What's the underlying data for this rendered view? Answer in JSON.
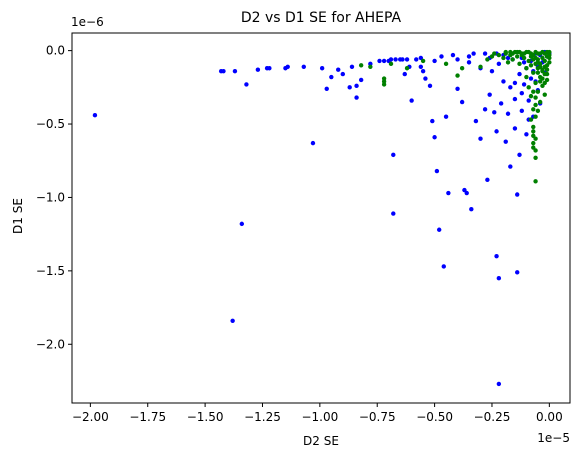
{
  "chart_data": {
    "type": "scatter",
    "title": "D2 vs D1 SE for AHEPA",
    "xlabel": "D2 SE",
    "ylabel": "D1 SE",
    "x_offset_label": "1e−5",
    "y_offset_label": "1e−6",
    "xlim": [
      -2.08,
      0.09
    ],
    "ylim": [
      -2.4,
      0.12
    ],
    "x_ticks": [
      -2.0,
      -1.75,
      -1.5,
      -1.25,
      -1.0,
      -0.75,
      -0.5,
      -0.25,
      0.0
    ],
    "x_tick_labels": [
      "−2.00",
      "−1.75",
      "−1.50",
      "−1.25",
      "−1.00",
      "−0.75",
      "−0.50",
      "−0.25",
      "0.00"
    ],
    "y_ticks": [
      -2.0,
      -1.5,
      -1.0,
      -0.5,
      0.0
    ],
    "y_tick_labels": [
      "−2.0",
      "−1.5",
      "−1.0",
      "−0.5",
      "0.0"
    ],
    "grid": false,
    "legend": "none",
    "series": [
      {
        "color": "#0000ff",
        "points": [
          [
            -1.98,
            -0.44
          ],
          [
            -1.43,
            -0.14
          ],
          [
            -1.42,
            -0.14
          ],
          [
            -1.37,
            -0.14
          ],
          [
            -1.34,
            -1.18
          ],
          [
            -1.32,
            -0.23
          ],
          [
            -1.38,
            -1.84
          ],
          [
            -1.27,
            -0.13
          ],
          [
            -1.23,
            -0.12
          ],
          [
            -1.22,
            -0.12
          ],
          [
            -1.15,
            -0.12
          ],
          [
            -1.14,
            -0.11
          ],
          [
            -1.07,
            -0.11
          ],
          [
            -1.03,
            -0.63
          ],
          [
            -0.99,
            -0.12
          ],
          [
            -0.97,
            -0.26
          ],
          [
            -0.95,
            -0.18
          ],
          [
            -0.92,
            -0.13
          ],
          [
            -0.9,
            -0.16
          ],
          [
            -0.87,
            -0.25
          ],
          [
            -0.86,
            -0.11
          ],
          [
            -0.84,
            -0.24
          ],
          [
            -0.84,
            -0.32
          ],
          [
            -0.82,
            -0.2
          ],
          [
            -0.78,
            -0.09
          ],
          [
            -0.74,
            -0.07
          ],
          [
            -0.72,
            -0.07
          ],
          [
            -0.7,
            -0.07
          ],
          [
            -0.69,
            -0.06
          ],
          [
            -0.67,
            -0.06
          ],
          [
            -0.65,
            -0.06
          ],
          [
            -0.64,
            -0.06
          ],
          [
            -0.62,
            -0.06
          ],
          [
            -0.68,
            -1.11
          ],
          [
            -0.68,
            -0.71
          ],
          [
            -0.63,
            -0.16
          ],
          [
            -0.61,
            -0.11
          ],
          [
            -0.6,
            -0.34
          ],
          [
            -0.58,
            -0.06
          ],
          [
            -0.56,
            -0.05
          ],
          [
            -0.55,
            -0.14
          ],
          [
            -0.54,
            -0.19
          ],
          [
            -0.52,
            -0.24
          ],
          [
            -0.51,
            -0.48
          ],
          [
            -0.5,
            -0.59
          ],
          [
            -0.49,
            -0.82
          ],
          [
            -0.48,
            -1.22
          ],
          [
            -0.47,
            -0.04
          ],
          [
            -0.46,
            -1.47
          ],
          [
            -0.45,
            -0.45
          ],
          [
            -0.44,
            -0.97
          ],
          [
            -0.42,
            -0.03
          ],
          [
            -0.4,
            -0.26
          ],
          [
            -0.38,
            -0.35
          ],
          [
            -0.37,
            -0.95
          ],
          [
            -0.36,
            -0.97
          ],
          [
            -0.35,
            -0.08
          ],
          [
            -0.34,
            -1.08
          ],
          [
            -0.33,
            -0.02
          ],
          [
            -0.32,
            -0.48
          ],
          [
            -0.3,
            -0.6
          ],
          [
            -0.3,
            -0.12
          ],
          [
            -0.28,
            -0.4
          ],
          [
            -0.28,
            -0.02
          ],
          [
            -0.27,
            -0.88
          ],
          [
            -0.26,
            -0.3
          ],
          [
            -0.25,
            -0.14
          ],
          [
            -0.24,
            -0.42
          ],
          [
            -0.23,
            -0.02
          ],
          [
            -0.23,
            -0.55
          ],
          [
            -0.23,
            -1.4
          ],
          [
            -0.22,
            -1.55
          ],
          [
            -0.22,
            -2.27
          ],
          [
            -0.21,
            -0.36
          ],
          [
            -0.2,
            -0.21
          ],
          [
            -0.2,
            -0.03
          ],
          [
            -0.19,
            -0.62
          ],
          [
            -0.18,
            -0.43
          ],
          [
            -0.17,
            -0.79
          ],
          [
            -0.17,
            -0.25
          ],
          [
            -0.16,
            -0.06
          ],
          [
            -0.15,
            -0.53
          ],
          [
            -0.15,
            -0.33
          ],
          [
            -0.14,
            -1.51
          ],
          [
            -0.14,
            -0.98
          ],
          [
            -0.13,
            -0.71
          ],
          [
            -0.13,
            -0.16
          ],
          [
            -0.12,
            -0.05
          ],
          [
            -0.12,
            -0.41
          ],
          [
            -0.11,
            -0.23
          ],
          [
            -0.1,
            -0.57
          ],
          [
            -0.1,
            -0.12
          ],
          [
            -0.09,
            -0.34
          ],
          [
            -0.08,
            -0.07
          ],
          [
            -0.08,
            -0.19
          ],
          [
            -0.07,
            -0.45
          ],
          [
            -0.06,
            -0.02
          ],
          [
            -0.05,
            -0.11
          ],
          [
            -0.05,
            -0.27
          ],
          [
            -0.04,
            -0.03
          ],
          [
            -0.03,
            -0.08
          ],
          [
            -0.02,
            -0.01
          ],
          [
            -0.02,
            -0.15
          ],
          [
            -0.01,
            -0.04
          ],
          [
            0.0,
            -0.02
          ],
          [
            -0.5,
            -0.07
          ],
          [
            -0.56,
            -0.11
          ],
          [
            -0.4,
            -0.06
          ],
          [
            -0.35,
            -0.04
          ],
          [
            -0.26,
            -0.05
          ],
          [
            -0.22,
            -0.09
          ],
          [
            -0.18,
            -0.05
          ],
          [
            -0.15,
            -0.22
          ],
          [
            -0.12,
            -0.29
          ],
          [
            -0.11,
            -0.08
          ],
          [
            -0.09,
            -0.47
          ],
          [
            -0.07,
            -0.14
          ],
          [
            -0.06,
            -0.21
          ],
          [
            -0.04,
            -0.36
          ]
        ]
      },
      {
        "color": "#008000",
        "points": [
          [
            -0.82,
            -0.1
          ],
          [
            -0.78,
            -0.11
          ],
          [
            -0.72,
            -0.19
          ],
          [
            -0.72,
            -0.21
          ],
          [
            -0.72,
            -0.23
          ],
          [
            -0.69,
            -0.09
          ],
          [
            -0.62,
            -0.12
          ],
          [
            -0.55,
            -0.07
          ],
          [
            -0.45,
            -0.09
          ],
          [
            -0.4,
            -0.17
          ],
          [
            -0.38,
            -0.12
          ],
          [
            -0.3,
            -0.11
          ],
          [
            -0.27,
            -0.06
          ],
          [
            -0.25,
            -0.04
          ],
          [
            -0.24,
            -0.02
          ],
          [
            -0.22,
            -0.03
          ],
          [
            -0.2,
            -0.05
          ],
          [
            -0.19,
            -0.02
          ],
          [
            -0.18,
            -0.08
          ],
          [
            -0.17,
            -0.03
          ],
          [
            -0.16,
            -0.06
          ],
          [
            -0.15,
            -0.01
          ],
          [
            -0.14,
            -0.04
          ],
          [
            -0.13,
            -0.09
          ],
          [
            -0.12,
            -0.02
          ],
          [
            -0.11,
            -0.05
          ],
          [
            -0.1,
            -0.12
          ],
          [
            -0.1,
            -0.18
          ],
          [
            -0.09,
            -0.07
          ],
          [
            -0.09,
            -0.25
          ],
          [
            -0.08,
            -0.02
          ],
          [
            -0.08,
            -0.31
          ],
          [
            -0.07,
            -0.15
          ],
          [
            -0.07,
            -0.4
          ],
          [
            -0.07,
            -0.52
          ],
          [
            -0.07,
            -0.58
          ],
          [
            -0.07,
            -0.63
          ],
          [
            -0.06,
            -0.73
          ],
          [
            -0.06,
            -0.89
          ],
          [
            -0.06,
            -0.45
          ],
          [
            -0.06,
            -0.32
          ],
          [
            -0.06,
            -0.22
          ],
          [
            -0.05,
            -0.06
          ],
          [
            -0.05,
            -0.12
          ],
          [
            -0.05,
            -0.28
          ],
          [
            -0.04,
            -0.02
          ],
          [
            -0.04,
            -0.09
          ],
          [
            -0.04,
            -0.18
          ],
          [
            -0.04,
            -0.35
          ],
          [
            -0.03,
            -0.01
          ],
          [
            -0.03,
            -0.05
          ],
          [
            -0.03,
            -0.13
          ],
          [
            -0.03,
            -0.24
          ],
          [
            -0.02,
            -0.02
          ],
          [
            -0.02,
            -0.07
          ],
          [
            -0.02,
            -0.16
          ],
          [
            -0.02,
            -0.3
          ],
          [
            -0.01,
            -0.01
          ],
          [
            -0.01,
            -0.04
          ],
          [
            -0.01,
            -0.1
          ],
          [
            -0.01,
            -0.2
          ],
          [
            0.0,
            -0.01
          ],
          [
            0.0,
            -0.03
          ],
          [
            0.0,
            -0.08
          ],
          [
            -0.13,
            -0.01
          ],
          [
            -0.11,
            -0.02
          ],
          [
            -0.09,
            -0.01
          ],
          [
            -0.07,
            -0.03
          ],
          [
            -0.06,
            -0.01
          ],
          [
            -0.05,
            -0.02
          ],
          [
            -0.19,
            -0.01
          ],
          [
            -0.17,
            -0.01
          ],
          [
            -0.16,
            -0.02
          ],
          [
            -0.14,
            -0.01
          ],
          [
            -0.12,
            -0.03
          ],
          [
            -0.1,
            -0.01
          ],
          [
            -0.08,
            -0.04
          ],
          [
            -0.06,
            -0.05
          ],
          [
            -0.05,
            -0.08
          ],
          [
            -0.04,
            -0.11
          ],
          [
            -0.03,
            -0.14
          ],
          [
            -0.02,
            -0.11
          ],
          [
            -0.01,
            -0.13
          ],
          [
            0.0,
            -0.05
          ],
          [
            -0.08,
            -0.1
          ],
          [
            -0.07,
            -0.06
          ],
          [
            -0.06,
            -0.09
          ],
          [
            -0.05,
            -0.15
          ],
          [
            -0.04,
            -0.21
          ],
          [
            -0.03,
            -0.19
          ],
          [
            -0.02,
            -0.22
          ],
          [
            -0.01,
            -0.16
          ],
          [
            -0.07,
            -0.28
          ],
          [
            -0.06,
            -0.37
          ],
          [
            -0.05,
            -0.41
          ],
          [
            -0.08,
            -0.47
          ],
          [
            -0.07,
            -0.55
          ],
          [
            -0.06,
            -0.6
          ],
          [
            -0.07,
            -0.66
          ],
          [
            -0.06,
            -0.68
          ]
        ]
      }
    ]
  }
}
